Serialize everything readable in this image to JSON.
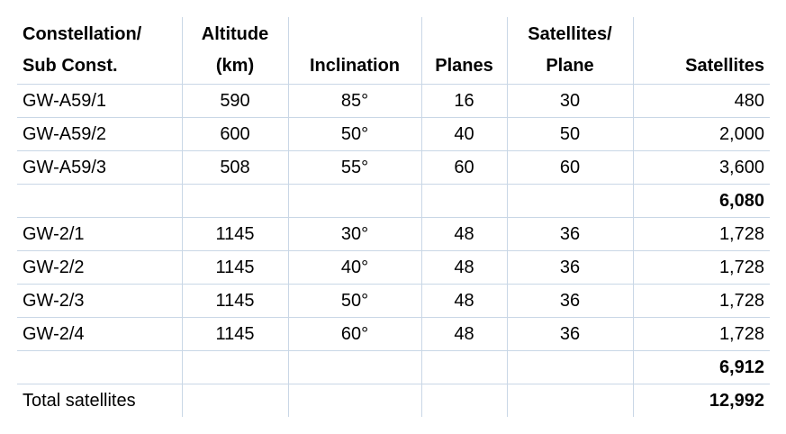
{
  "table": {
    "headers": {
      "constellation_line1": "Constellation/",
      "constellation_line2": "Sub Const.",
      "altitude_line1": "Altitude",
      "altitude_line2": "(km)",
      "inclination": "Inclination",
      "planes": "Planes",
      "sats_per_plane_line1": "Satellites/",
      "sats_per_plane_line2": "Plane",
      "satellites": "Satellites"
    },
    "rows": [
      {
        "name": "GW-A59/1",
        "altitude": "590",
        "inclination": "85°",
        "planes": "16",
        "per_plane": "30",
        "satellites": "480"
      },
      {
        "name": "GW-A59/2",
        "altitude": "600",
        "inclination": "50°",
        "planes": "40",
        "per_plane": "50",
        "satellites": "2,000"
      },
      {
        "name": "GW-A59/3",
        "altitude": "508",
        "inclination": "55°",
        "planes": "60",
        "per_plane": "60",
        "satellites": "3,600"
      },
      {
        "name": "",
        "altitude": "",
        "inclination": "",
        "planes": "",
        "per_plane": "",
        "satellites": "6,080"
      },
      {
        "name": "GW-2/1",
        "altitude": "1145",
        "inclination": "30°",
        "planes": "48",
        "per_plane": "36",
        "satellites": "1,728"
      },
      {
        "name": "GW-2/2",
        "altitude": "1145",
        "inclination": "40°",
        "planes": "48",
        "per_plane": "36",
        "satellites": "1,728"
      },
      {
        "name": "GW-2/3",
        "altitude": "1145",
        "inclination": "50°",
        "planes": "48",
        "per_plane": "36",
        "satellites": "1,728"
      },
      {
        "name": "GW-2/4",
        "altitude": "1145",
        "inclination": "60°",
        "planes": "48",
        "per_plane": "36",
        "satellites": "1,728"
      },
      {
        "name": "",
        "altitude": "",
        "inclination": "",
        "planes": "",
        "per_plane": "",
        "satellites": "6,912"
      },
      {
        "name": "Total satellites",
        "altitude": "",
        "inclination": "",
        "planes": "",
        "per_plane": "",
        "satellites": "12,992"
      }
    ]
  },
  "colors": {
    "gridline": "#c9d7e6",
    "text": "#000000",
    "background": "#ffffff"
  }
}
